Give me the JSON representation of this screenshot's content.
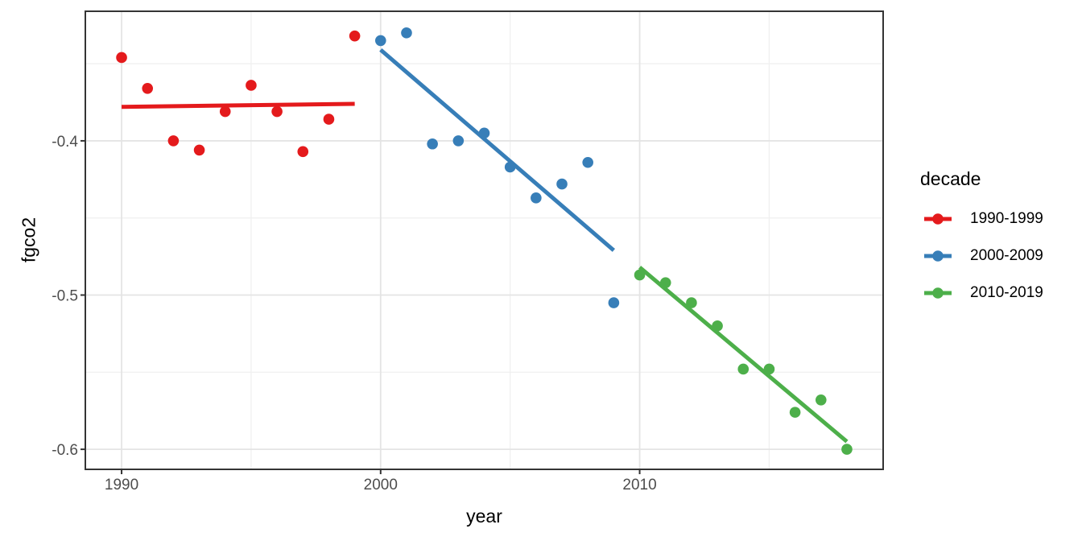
{
  "chart_data": {
    "type": "scatter",
    "title": "",
    "xlabel": "year",
    "ylabel": "fgco2",
    "legend_title": "decade",
    "legend_position": "right",
    "grid": "on",
    "x_domain": [
      1988.6,
      2019.4
    ],
    "y_domain": [
      -0.613,
      -0.316
    ],
    "x_ticks": [
      {
        "value": 1990,
        "label": "1990"
      },
      {
        "value": 2000,
        "label": "2000"
      },
      {
        "value": 2010,
        "label": "2010"
      }
    ],
    "y_ticks": [
      {
        "value": -0.4,
        "label": "-0.4"
      },
      {
        "value": -0.5,
        "label": "-0.5"
      },
      {
        "value": -0.6,
        "label": "-0.6"
      }
    ],
    "x_minor_gridlines": [
      1995,
      2005,
      2015
    ],
    "y_minor_gridlines": [
      -0.35,
      -0.45,
      -0.55
    ],
    "series": [
      {
        "name": "1990-1999",
        "color": "#E41A1C",
        "x": [
          1990,
          1991,
          1992,
          1993,
          1994,
          1995,
          1996,
          1997,
          1998,
          1999
        ],
        "y": [
          -0.346,
          -0.366,
          -0.4,
          -0.406,
          -0.381,
          -0.364,
          -0.381,
          -0.407,
          -0.386,
          -0.332
        ],
        "trend": {
          "x1": 1990,
          "y1": -0.378,
          "x2": 1999,
          "y2": -0.376
        }
      },
      {
        "name": "2000-2009",
        "color": "#377EB8",
        "x": [
          2000,
          2001,
          2002,
          2003,
          2004,
          2005,
          2006,
          2007,
          2008,
          2009
        ],
        "y": [
          -0.335,
          -0.33,
          -0.402,
          -0.4,
          -0.395,
          -0.417,
          -0.437,
          -0.428,
          -0.414,
          -0.505
        ],
        "trend": {
          "x1": 2000,
          "y1": -0.341,
          "x2": 2009,
          "y2": -0.471
        }
      },
      {
        "name": "2010-2019",
        "color": "#4DAF4A",
        "x": [
          2010,
          2011,
          2012,
          2013,
          2014,
          2015,
          2016,
          2017,
          2018
        ],
        "y": [
          -0.487,
          -0.492,
          -0.505,
          -0.52,
          -0.548,
          -0.548,
          -0.576,
          -0.568,
          -0.6
        ],
        "trend": {
          "x1": 2010,
          "y1": -0.482,
          "x2": 2018,
          "y2": -0.595
        }
      }
    ],
    "style": {
      "panel_background": "#FFFFFF",
      "panel_border": "#343434",
      "grid_major_color": "#E4E4E4",
      "grid_minor_color": "#EFEFEF",
      "tick_mark_color": "#333333",
      "tick_label_color": "#4D4D4D",
      "axis_title_color": "#000000"
    }
  }
}
